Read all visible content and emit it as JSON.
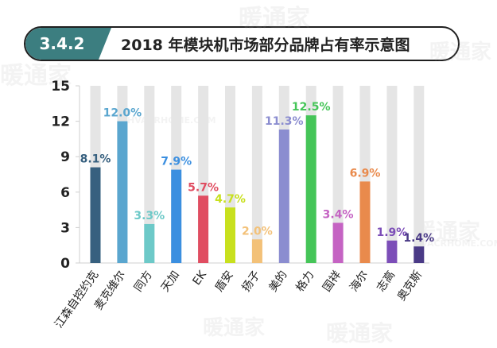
{
  "header": {
    "section_number": "3.4.2",
    "title": "2018 年模块机市场部分品牌占有率示意图"
  },
  "watermark": {
    "brand": "暖通家",
    "latin": "HVACRHOME.COM"
  },
  "chart_data": {
    "type": "bar",
    "title": "2018 年模块机市场部分品牌占有率示意图",
    "xlabel": "",
    "ylabel": "",
    "ylim": [
      0,
      15
    ],
    "yticks": [
      0,
      3,
      6,
      9,
      12,
      15
    ],
    "grid": false,
    "legend": "none",
    "categories": [
      "江森自控约克",
      "麦克维尔",
      "同方",
      "天加",
      "EK",
      "盾安",
      "扬子",
      "美的",
      "格力",
      "国祥",
      "海尔",
      "志高",
      "奥克斯"
    ],
    "values": [
      8.1,
      12.0,
      3.3,
      7.9,
      5.7,
      4.7,
      2.0,
      11.3,
      12.5,
      3.4,
      6.9,
      1.9,
      1.4
    ],
    "value_labels": [
      "8.1%",
      "12.0%",
      "3.3%",
      "7.9%",
      "5.7%",
      "4.7%",
      "2.0%",
      "11.3%",
      "12.5%",
      "3.4%",
      "6.9%",
      "1.9%",
      "1.4%"
    ],
    "colors": [
      "#37607f",
      "#5aa6cf",
      "#6dc9c8",
      "#3b8fe0",
      "#e04d61",
      "#c8e01e",
      "#f3c178",
      "#8b8dd0",
      "#45c558",
      "#c563c3",
      "#e98a4c",
      "#7c4eb8",
      "#4a3a86"
    ],
    "background_bar_color": "#e5e5e5"
  }
}
